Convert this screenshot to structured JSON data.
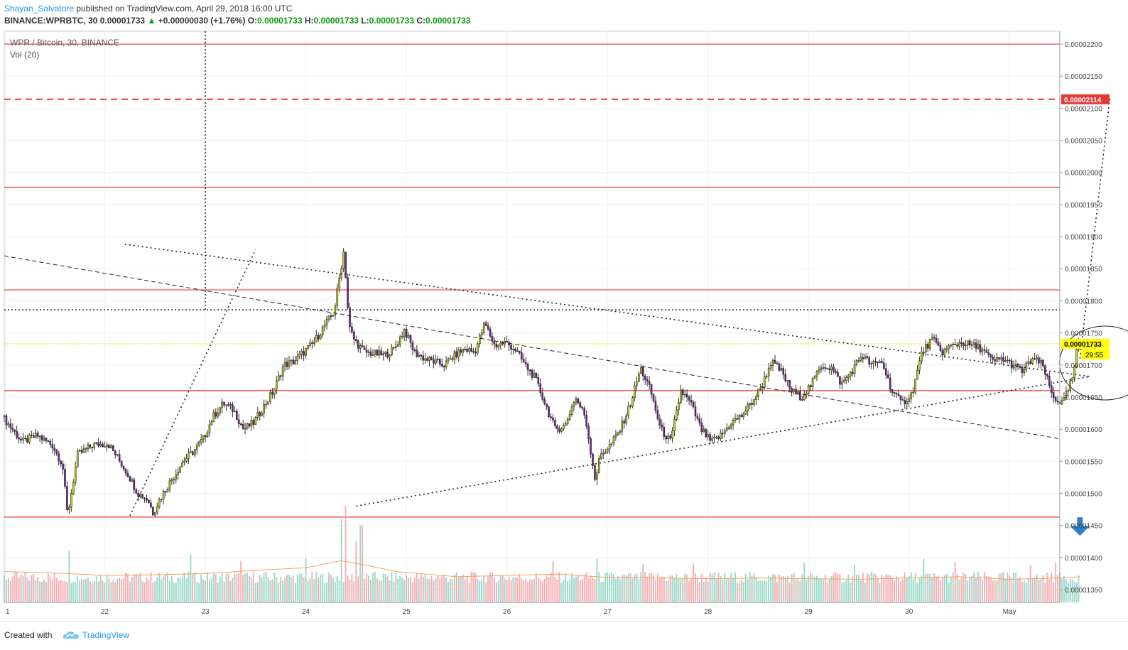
{
  "header": {
    "author": "Shayan_Salvatore",
    "published_text": "published on TradingView.com, April 29, 2018 16:00 UTC",
    "symbol_line": "BINANCE:WPRBTC, 30",
    "close_value": "0.00001733",
    "change_value": "+0.00000030 (+1.76%)",
    "o_label": "O:",
    "o_value": "0.00001733",
    "h_label": "H:",
    "h_value": "0.00001733",
    "l_label": "L:",
    "l_value": "0.00001733",
    "c_label": "C:",
    "c_value": "0.00001733"
  },
  "legend": {
    "title": "WPR / Bitcoin, 30, BINANCE",
    "volume": "Vol (20)"
  },
  "footer": {
    "created_with": "Created with",
    "brand": "TradingView"
  },
  "colors": {
    "bull": "#c8d400",
    "bear": "#7b1fa2",
    "vol_up": "#8fd3c2",
    "vol_down": "#f5a3a8",
    "vol_ma": "#f5a25d",
    "support_line": "#e53935",
    "target_line": "#e53935",
    "current_price": "#ffff00",
    "arrow": "#2f7fd1"
  },
  "chart_data": {
    "type": "candlestick",
    "x_ticks": [
      "1",
      "22",
      "23",
      "24",
      "25",
      "26",
      "27",
      "28",
      "29",
      "30",
      "May"
    ],
    "y_ticks": [
      "0.00002200",
      "0.00002150",
      "0.00002100",
      "0.00002050",
      "0.00002000",
      "0.00001950",
      "0.00001900",
      "0.00001850",
      "0.00001800",
      "0.00001750",
      "0.00001700",
      "0.00001650",
      "0.00001600",
      "0.00001550",
      "0.00001500",
      "0.00001450",
      "0.00001400",
      "0.00001350"
    ],
    "ylim": [
      1.33e-05,
      2.22e-05
    ],
    "xlim_days": [
      21.0,
      31.5
    ],
    "current_price_label": "0.00001733",
    "countdown_label": "29:55",
    "target_price_label": "0.00002114",
    "target_price": 2.114e-05,
    "current_price": 1.733e-05,
    "horizontal_levels": [
      2.2e-05,
      1.977e-05,
      1.817e-05,
      1.66e-05,
      1.463e-05
    ],
    "dotted_level": 1.786e-05,
    "price_path": [
      [
        21.0,
        1620
      ],
      [
        21.2,
        1580
      ],
      [
        21.35,
        1590
      ],
      [
        21.5,
        1575
      ],
      [
        21.6,
        1545
      ],
      [
        21.65,
        1465
      ],
      [
        21.75,
        1560
      ],
      [
        21.9,
        1575
      ],
      [
        22.05,
        1578
      ],
      [
        22.15,
        1555
      ],
      [
        22.25,
        1530
      ],
      [
        22.35,
        1500
      ],
      [
        22.45,
        1490
      ],
      [
        22.5,
        1470
      ],
      [
        22.6,
        1500
      ],
      [
        22.7,
        1525
      ],
      [
        22.8,
        1550
      ],
      [
        22.9,
        1565
      ],
      [
        23.0,
        1585
      ],
      [
        23.1,
        1620
      ],
      [
        23.2,
        1640
      ],
      [
        23.3,
        1630
      ],
      [
        23.4,
        1600
      ],
      [
        23.5,
        1610
      ],
      [
        23.6,
        1635
      ],
      [
        23.7,
        1660
      ],
      [
        23.8,
        1700
      ],
      [
        23.9,
        1705
      ],
      [
        24.0,
        1720
      ],
      [
        24.1,
        1735
      ],
      [
        24.2,
        1760
      ],
      [
        24.3,
        1782
      ],
      [
        24.4,
        1880
      ],
      [
        24.45,
        1760
      ],
      [
        24.5,
        1740
      ],
      [
        24.6,
        1720
      ],
      [
        24.7,
        1718
      ],
      [
        24.8,
        1715
      ],
      [
        24.9,
        1725
      ],
      [
        25.0,
        1755
      ],
      [
        25.1,
        1720
      ],
      [
        25.2,
        1710
      ],
      [
        25.3,
        1705
      ],
      [
        25.4,
        1700
      ],
      [
        25.5,
        1715
      ],
      [
        25.6,
        1725
      ],
      [
        25.7,
        1720
      ],
      [
        25.8,
        1765
      ],
      [
        25.9,
        1730
      ],
      [
        26.0,
        1735
      ],
      [
        26.1,
        1725
      ],
      [
        26.2,
        1700
      ],
      [
        26.3,
        1680
      ],
      [
        26.4,
        1640
      ],
      [
        26.5,
        1600
      ],
      [
        26.6,
        1605
      ],
      [
        26.7,
        1650
      ],
      [
        26.8,
        1620
      ],
      [
        26.9,
        1520
      ],
      [
        26.95,
        1560
      ],
      [
        27.05,
        1575
      ],
      [
        27.15,
        1600
      ],
      [
        27.25,
        1640
      ],
      [
        27.35,
        1695
      ],
      [
        27.45,
        1660
      ],
      [
        27.55,
        1600
      ],
      [
        27.65,
        1580
      ],
      [
        27.75,
        1660
      ],
      [
        27.85,
        1640
      ],
      [
        27.95,
        1600
      ],
      [
        28.05,
        1580
      ],
      [
        28.15,
        1590
      ],
      [
        28.25,
        1610
      ],
      [
        28.35,
        1620
      ],
      [
        28.45,
        1640
      ],
      [
        28.55,
        1665
      ],
      [
        28.65,
        1705
      ],
      [
        28.75,
        1690
      ],
      [
        28.85,
        1660
      ],
      [
        28.95,
        1650
      ],
      [
        29.05,
        1670
      ],
      [
        29.15,
        1700
      ],
      [
        29.25,
        1695
      ],
      [
        29.35,
        1670
      ],
      [
        29.45,
        1690
      ],
      [
        29.55,
        1715
      ],
      [
        29.65,
        1700
      ],
      [
        29.75,
        1705
      ],
      [
        29.85,
        1660
      ],
      [
        29.95,
        1640
      ],
      [
        30.05,
        1655
      ],
      [
        30.15,
        1720
      ],
      [
        30.25,
        1740
      ],
      [
        30.35,
        1720
      ],
      [
        30.45,
        1730
      ],
      [
        30.55,
        1735
      ],
      [
        30.65,
        1730
      ],
      [
        30.75,
        1725
      ],
      [
        30.85,
        1705
      ],
      [
        30.95,
        1710
      ],
      [
        31.05,
        1700
      ],
      [
        31.15,
        1690
      ],
      [
        31.25,
        1710
      ],
      [
        31.35,
        1700
      ],
      [
        31.45,
        1650
      ],
      [
        31.55,
        1640
      ],
      [
        31.65,
        1680
      ],
      [
        31.7,
        1733
      ]
    ],
    "volume_ma_path": [
      [
        21.0,
        1378
      ],
      [
        21.5,
        1376
      ],
      [
        22.0,
        1372
      ],
      [
        22.5,
        1373
      ],
      [
        23.0,
        1375
      ],
      [
        23.5,
        1380
      ],
      [
        24.0,
        1384
      ],
      [
        24.35,
        1395
      ],
      [
        24.6,
        1388
      ],
      [
        24.9,
        1378
      ],
      [
        25.5,
        1370
      ],
      [
        26.0,
        1372
      ],
      [
        26.5,
        1374
      ],
      [
        27.0,
        1369
      ],
      [
        27.5,
        1368
      ],
      [
        28.0,
        1367
      ],
      [
        28.5,
        1368
      ],
      [
        29.0,
        1367
      ],
      [
        29.5,
        1366
      ],
      [
        30.0,
        1368
      ],
      [
        30.5,
        1370
      ],
      [
        31.0,
        1366
      ],
      [
        31.5,
        1368
      ],
      [
        31.7,
        1370
      ]
    ],
    "volume_spikes": [
      [
        21.65,
        1410
      ],
      [
        22.85,
        1405
      ],
      [
        23.35,
        1395
      ],
      [
        24.0,
        1398
      ],
      [
        24.35,
        1460
      ],
      [
        24.4,
        1480
      ],
      [
        24.5,
        1425
      ],
      [
        24.55,
        1450
      ],
      [
        26.45,
        1395
      ],
      [
        26.9,
        1398
      ],
      [
        27.35,
        1390
      ],
      [
        27.85,
        1390
      ],
      [
        28.95,
        1392
      ],
      [
        29.45,
        1388
      ],
      [
        30.15,
        1398
      ],
      [
        30.45,
        1393
      ],
      [
        31.2,
        1388
      ],
      [
        31.45,
        1392
      ],
      [
        31.7,
        1400
      ]
    ],
    "annotations": {
      "descending_trend_dotted": [
        [
          22.2,
          1888
        ],
        [
          31.8,
          1682
        ]
      ],
      "ascending_trend_dotted": [
        [
          24.5,
          1480
        ],
        [
          31.8,
          1682
        ]
      ],
      "dashed_trend": [
        [
          21.0,
          1870
        ],
        [
          31.5,
          1585
        ]
      ],
      "rally_line": [
        [
          22.25,
          1465
        ],
        [
          23.5,
          1880
        ]
      ],
      "projection_line": [
        [
          31.7,
          1710
        ],
        [
          32.0,
          2118
        ]
      ],
      "vertical_dotted_day": 23.0,
      "circle_center": [
        31.95,
        1703
      ],
      "arrow_at": [
        31.7,
        1447
      ]
    }
  }
}
